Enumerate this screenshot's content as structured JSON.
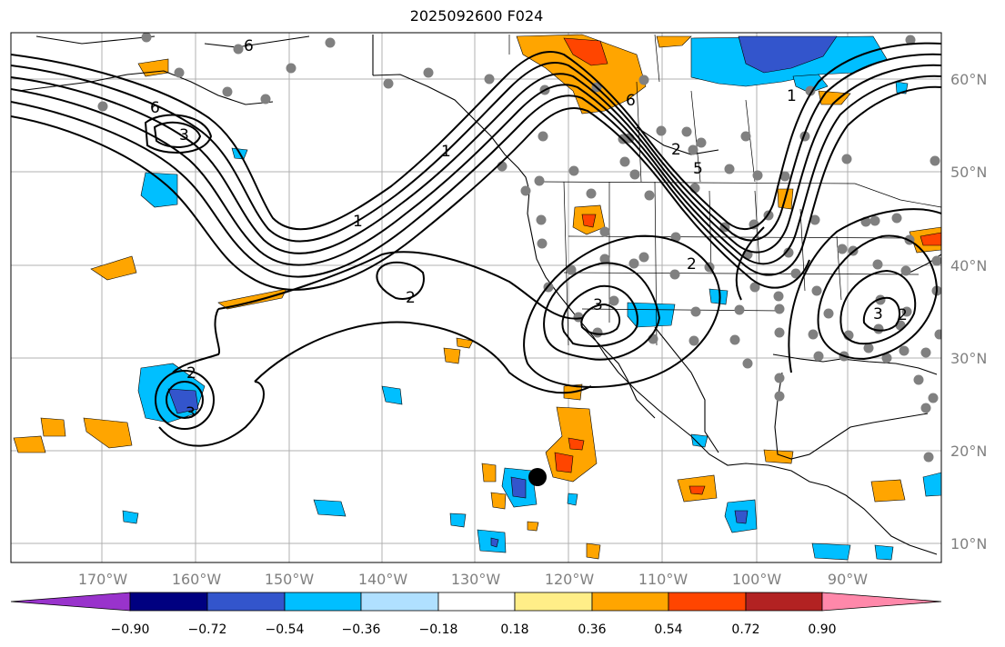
{
  "title": "2025092600 F024",
  "lon_labels": [
    "170°W",
    "160°W",
    "150°W",
    "140°W",
    "130°W",
    "120°W",
    "110°W",
    "100°W",
    "90°W"
  ],
  "lat_labels": [
    "10°N",
    "20°N",
    "30°N",
    "40°N",
    "50°N",
    "60°N"
  ],
  "contour_labels": [
    "6",
    "3",
    "1",
    "1",
    "2",
    "2",
    "3",
    "2",
    "3",
    "6",
    "5",
    "6",
    "1",
    "2",
    "3",
    "2"
  ],
  "colorbar": {
    "colors": [
      "#9933cc",
      "#000080",
      "#3355cc",
      "#00bfff",
      "#b0e0ff",
      "#ffffff",
      "#ffee88",
      "#ffa500",
      "#ff4500",
      "#b22222",
      "#ff88aa"
    ],
    "labels": [
      "−0.90",
      "−0.72",
      "−0.54",
      "−0.36",
      "−0.18",
      "0.18",
      "0.36",
      "0.54",
      "0.72",
      "0.90"
    ]
  },
  "colors": {
    "orange": "#ffa500",
    "red": "#ff4500",
    "blue": "#00bfff",
    "darkblue": "#3355cc",
    "station": "#808080",
    "grid": "#b0b0b0"
  }
}
